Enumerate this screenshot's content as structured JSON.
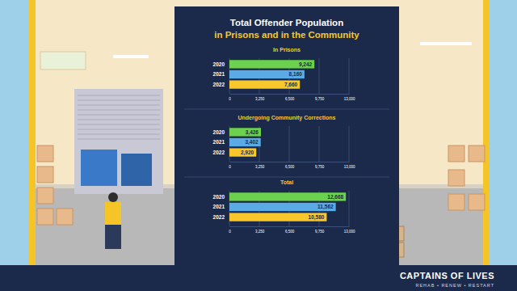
{
  "title": "Total Offender Population",
  "subtitle": "in Prisons and in the Community",
  "chart_data": [
    {
      "type": "bar",
      "title": "In Prisons",
      "orientation": "horizontal",
      "categories": [
        "2020",
        "2021",
        "2022"
      ],
      "values": [
        9242,
        8160,
        7660
      ],
      "value_labels": [
        "9,242",
        "8,160",
        "7,660"
      ],
      "data_labels": true,
      "colors": [
        "#6cd14c",
        "#5aaae6",
        "#f7c72c"
      ],
      "xlim": [
        0,
        13000
      ],
      "xticks": [
        0,
        {
          "value": 3250,
          "label": "3,250"
        },
        {
          "value": 6500,
          "label": "6,500"
        },
        {
          "value": 9750,
          "label": "9,750"
        },
        {
          "value": 13000,
          "label": "13,000"
        }
      ],
      "grid": true
    },
    {
      "type": "bar",
      "title": "Undergoing Community Corrections",
      "orientation": "horizontal",
      "categories": [
        "2020",
        "2021",
        "2022"
      ],
      "values": [
        3426,
        3402,
        2920
      ],
      "value_labels": [
        "3,426",
        "3,402",
        "2,920"
      ],
      "data_labels": true,
      "colors": [
        "#6cd14c",
        "#5aaae6",
        "#f7c72c"
      ],
      "xlim": [
        0,
        13000
      ],
      "xticks": [
        0,
        {
          "value": 3250,
          "label": "3,250"
        },
        {
          "value": 6500,
          "label": "6,500"
        },
        {
          "value": 9750,
          "label": "9,750"
        },
        {
          "value": 13000,
          "label": "13,000"
        }
      ],
      "grid": true
    },
    {
      "type": "bar",
      "title": "Total",
      "orientation": "horizontal",
      "categories": [
        "2020",
        "2021",
        "2022"
      ],
      "values": [
        12668,
        11562,
        10580
      ],
      "value_labels": [
        "12,668",
        "11,562",
        "10,580"
      ],
      "data_labels": true,
      "colors": [
        "#6cd14c",
        "#5aaae6",
        "#f7c72c"
      ],
      "xlim": [
        0,
        13000
      ],
      "xticks": [
        0,
        {
          "value": 3250,
          "label": "3,250"
        },
        {
          "value": 6500,
          "label": "6,500"
        },
        {
          "value": 9750,
          "label": "9,750"
        },
        {
          "value": 13000,
          "label": "13,000"
        }
      ],
      "grid": true
    }
  ],
  "brand": {
    "name": "CAPTAINS OF LIVES",
    "tagline": "REHAB • RENEW • RESTART"
  }
}
